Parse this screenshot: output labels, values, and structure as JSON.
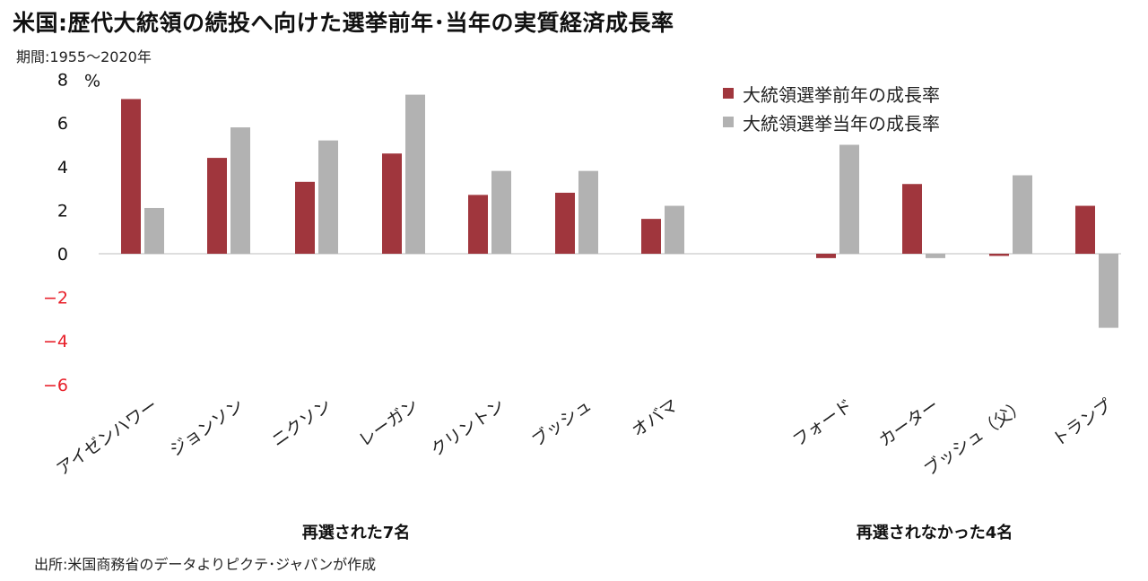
{
  "title": "米国:歴代大統領の続投へ向けた選挙前年･当年の実質経済成長率",
  "subtitle": "期間:1955～2020年",
  "source": "出所:米国商務省のデータよりピクテ･ジャパンが作成",
  "groups": [
    {
      "label": "再選された7名"
    },
    {
      "label": "再選されなかった4名"
    }
  ],
  "colors": {
    "series1": "#a0363d",
    "series2": "#b2b2b2",
    "negative_tick": "#e8202a",
    "tick": "#111111"
  },
  "chart_data": {
    "type": "bar",
    "ylabel": "%",
    "ylim": [
      -6,
      8
    ],
    "yticks": [
      {
        "value": 8,
        "label": "8"
      },
      {
        "value": 6,
        "label": "6"
      },
      {
        "value": 4,
        "label": "4"
      },
      {
        "value": 2,
        "label": "2"
      },
      {
        "value": 0,
        "label": "0"
      },
      {
        "value": -2,
        "label": "−2"
      },
      {
        "value": -4,
        "label": "−4"
      },
      {
        "value": -6,
        "label": "−6"
      }
    ],
    "categories": [
      "アイゼンハワー",
      "ジョンソン",
      "ニクソン",
      "レーガン",
      "クリントン",
      "ブッシュ",
      "オバマ",
      "フォード",
      "カーター",
      "ブッシュ（父）",
      "トランプ"
    ],
    "series": [
      {
        "name": "大統領選挙前年の成長率",
        "values": [
          7.1,
          4.4,
          3.3,
          4.6,
          2.7,
          2.8,
          1.6,
          -0.2,
          3.2,
          -0.1,
          2.2
        ]
      },
      {
        "name": "大統領選挙当年の成長率",
        "values": [
          2.1,
          5.8,
          5.2,
          7.3,
          3.8,
          3.8,
          2.2,
          5.0,
          -0.2,
          3.6,
          -3.4
        ]
      }
    ],
    "legend_position": "top-right",
    "grid": false
  }
}
